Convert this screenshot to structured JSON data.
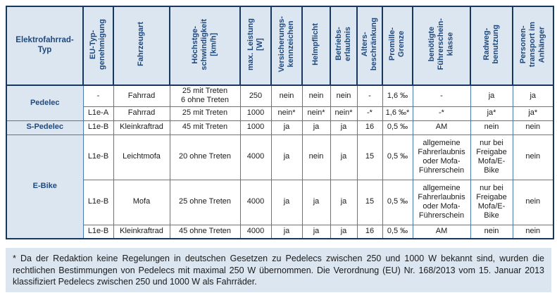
{
  "table": {
    "columns": [
      "Elektrofahrrad-\nTyp",
      "EU-Typ-\ngenehmigung",
      "Fahrzeugart",
      "Höchstge-\nschwindigkeit\n[km/h]",
      "max. Leistung\n[W]",
      "Versicherungs-\nkennzeichen",
      "Helmpflicht",
      "Betriebs-\nerlaubnis",
      "Alters-\nbeschränkung",
      "Promille-\nGrenze",
      "benötigte\nFührerschein-\nklasse",
      "Radweg-\nbenutzung",
      "Personen-\ntransport im\nAnhänger"
    ],
    "groups": [
      {
        "type": "Pedelec",
        "rows": [
          [
            "-",
            "Fahrrad",
            "25 mit Treten\n6 ohne Treten",
            "250",
            "nein",
            "nein",
            "nein",
            "-",
            "1,6 ‰",
            "-",
            "ja",
            "ja"
          ],
          [
            "L1e-A",
            "Fahrrad",
            "25 mit Treten",
            "1000",
            "nein*",
            "nein*",
            "nein*",
            "-*",
            "1,6 ‰*",
            "-*",
            "ja*",
            "ja*"
          ]
        ]
      },
      {
        "type": "S-Pedelec",
        "rows": [
          [
            "L1e-B",
            "Kleinkraftrad",
            "45 mit Treten",
            "1000",
            "ja",
            "ja",
            "ja",
            "16",
            "0,5 ‰",
            "AM",
            "nein",
            "nein"
          ]
        ]
      },
      {
        "type": "E-Bike",
        "rows": [
          [
            "L1e-B",
            "Leichtmofa",
            "20 ohne Treten",
            "4000",
            "ja",
            "nein",
            "ja",
            "15",
            "0,5 ‰",
            "allgemeine Fahrerlaubnis oder Mofa-Führerschein",
            "nur bei Freigabe Mofa/E-Bike",
            "nein"
          ],
          [
            "L1e-B",
            "Mofa",
            "25 ohne Treten",
            "4000",
            "ja",
            "ja",
            "ja",
            "15",
            "0,5 ‰",
            "allgemeine Fahrerlaubnis oder Mofa-Führerschein",
            "nur bei Freigabe Mofa/E-Bike",
            "nein"
          ],
          [
            "L1e-B",
            "Kleinkraftrad",
            "45 ohne Treten",
            "4000",
            "ja",
            "ja",
            "ja",
            "16",
            "0,5 ‰",
            "AM",
            "nein",
            "nein"
          ]
        ]
      }
    ]
  },
  "footnote": {
    "text": "* Da der Redaktion keine Regelungen in deutschen Gesetzen zu Pedelecs zwischen 250 und 1000 W bekannt sind, wurden die rechtlichen Bestimmungen von Pedelecs mit maximal 250 W übernommen. Die Verordnung (EU) Nr. 168/2013 vom 15. Januar 2013 klassifiziert Pedelecs zwischen 250 und 1000 W als Fahrräder."
  },
  "colors": {
    "accent_bg": "#dce6f1",
    "header_text": "#1f497d",
    "outer_border": "#17375e",
    "inner_border": "#4a7aab"
  }
}
